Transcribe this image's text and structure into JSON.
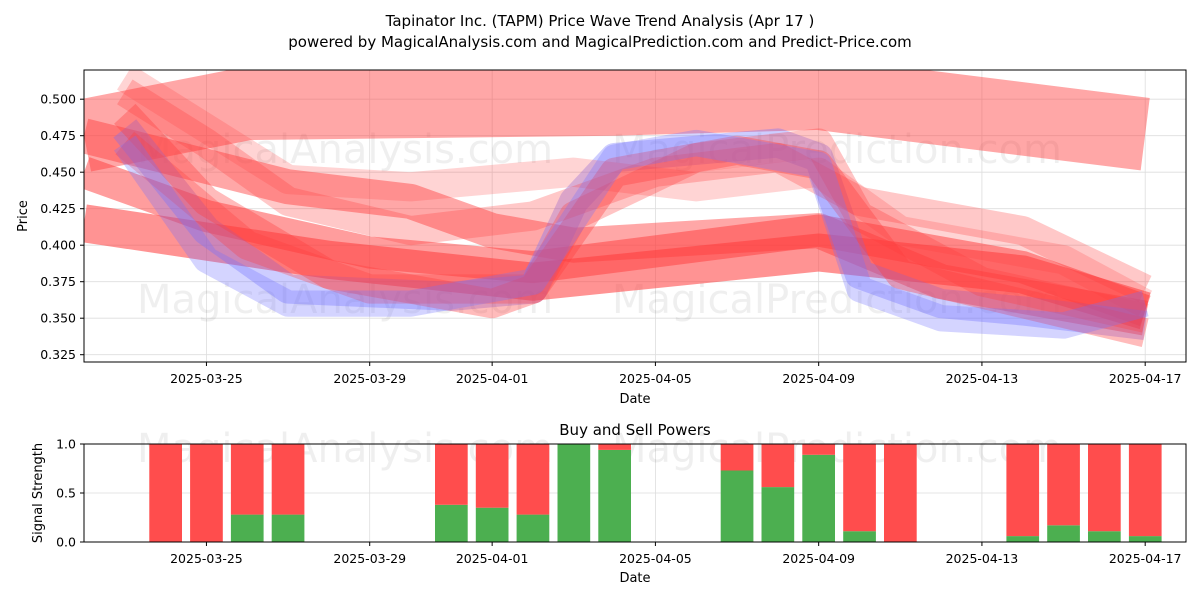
{
  "colors": {
    "buy": "#4caf50",
    "sell": "#ff4d4d",
    "wave_red": "#ff3b3b",
    "wave_blue": "#6f6fff"
  },
  "watermarks": [
    "MagicalAnalysis.com",
    "MagicalPrediction.com"
  ],
  "chart_data": [
    {
      "type": "line",
      "title": "Tapinator Inc. (TAPM) Price Wave Trend Analysis (Apr 17 )",
      "subtitle": "powered by MagicalAnalysis.com and MagicalPrediction.com and Predict-Price.com",
      "xlabel": "Date",
      "ylabel": "Price",
      "x_range": [
        "2025-03-22",
        "2025-04-18"
      ],
      "ylim": [
        0.32,
        0.52
      ],
      "x_ticks": [
        "2025-03-25",
        "2025-03-29",
        "2025-04-01",
        "2025-04-05",
        "2025-04-09",
        "2025-04-13",
        "2025-04-17"
      ],
      "y_ticks": [
        0.325,
        0.35,
        0.375,
        0.4,
        0.425,
        0.45,
        0.475,
        0.5
      ],
      "grid": true,
      "series": [
        {
          "color": "red",
          "width": 0.05,
          "opacity": 0.45,
          "points": [
            [
              "2025-03-22",
              0.475
            ],
            [
              "2025-03-26",
              0.497
            ],
            [
              "2025-04-04",
              0.5
            ],
            [
              "2025-04-09",
              0.504
            ],
            [
              "2025-04-17",
              0.476
            ]
          ]
        },
        {
          "color": "red",
          "width": 0.026,
          "opacity": 0.55,
          "points": [
            [
              "2025-03-22",
              0.415
            ],
            [
              "2025-03-28",
              0.39
            ],
            [
              "2025-04-02",
              0.375
            ],
            [
              "2025-04-09",
              0.395
            ],
            [
              "2025-04-14",
              0.38
            ],
            [
              "2025-04-17",
              0.355
            ]
          ]
        },
        {
          "color": "red",
          "width": 0.022,
          "opacity": 0.5,
          "points": [
            [
              "2025-03-22",
              0.45
            ],
            [
              "2025-03-25",
              0.42
            ],
            [
              "2025-03-29",
              0.395
            ],
            [
              "2025-04-02",
              0.385
            ],
            [
              "2025-04-09",
              0.41
            ],
            [
              "2025-04-14",
              0.385
            ],
            [
              "2025-04-17",
              0.355
            ]
          ]
        },
        {
          "color": "red",
          "width": 0.024,
          "opacity": 0.45,
          "points": [
            [
              "2025-03-22",
              0.475
            ],
            [
              "2025-03-27",
              0.44
            ],
            [
              "2025-03-30",
              0.43
            ],
            [
              "2025-04-01",
              0.41
            ],
            [
              "2025-04-03",
              0.4
            ],
            [
              "2025-04-09",
              0.41
            ],
            [
              "2025-04-12",
              0.375
            ],
            [
              "2025-04-17",
              0.35
            ]
          ]
        },
        {
          "color": "blue",
          "width": 0.02,
          "opacity": 0.35,
          "points": [
            [
              "2025-03-23",
              0.48
            ],
            [
              "2025-03-25",
              0.41
            ],
            [
              "2025-03-27",
              0.37
            ],
            [
              "2025-03-31",
              0.365
            ],
            [
              "2025-04-02",
              0.37
            ],
            [
              "2025-04-03",
              0.43
            ],
            [
              "2025-04-04",
              0.46
            ],
            [
              "2025-04-08",
              0.47
            ],
            [
              "2025-04-09",
              0.46
            ],
            [
              "2025-04-10",
              0.38
            ],
            [
              "2025-04-12",
              0.36
            ],
            [
              "2025-04-14",
              0.355
            ],
            [
              "2025-04-17",
              0.345
            ]
          ]
        },
        {
          "color": "red",
          "width": 0.02,
          "opacity": 0.35,
          "points": [
            [
              "2025-03-23",
              0.49
            ],
            [
              "2025-03-25",
              0.43
            ],
            [
              "2025-03-28",
              0.38
            ],
            [
              "2025-04-01",
              0.36
            ],
            [
              "2025-04-02",
              0.37
            ],
            [
              "2025-04-04",
              0.45
            ],
            [
              "2025-04-07",
              0.465
            ],
            [
              "2025-04-09",
              0.455
            ],
            [
              "2025-04-11",
              0.38
            ],
            [
              "2025-04-14",
              0.36
            ],
            [
              "2025-04-17",
              0.34
            ]
          ]
        },
        {
          "color": "red",
          "width": 0.02,
          "opacity": 0.3,
          "points": [
            [
              "2025-03-23",
              0.47
            ],
            [
              "2025-03-26",
              0.4
            ],
            [
              "2025-03-29",
              0.37
            ],
            [
              "2025-04-02",
              0.37
            ],
            [
              "2025-04-03",
              0.42
            ],
            [
              "2025-04-06",
              0.46
            ],
            [
              "2025-04-09",
              0.47
            ],
            [
              "2025-04-10",
              0.42
            ],
            [
              "2025-04-13",
              0.375
            ],
            [
              "2025-04-17",
              0.35
            ]
          ]
        },
        {
          "color": "red",
          "width": 0.02,
          "opacity": 0.28,
          "points": [
            [
              "2025-03-23",
              0.505
            ],
            [
              "2025-03-25",
              0.47
            ],
            [
              "2025-03-27",
              0.43
            ],
            [
              "2025-03-30",
              0.41
            ],
            [
              "2025-04-02",
              0.42
            ],
            [
              "2025-04-05",
              0.45
            ],
            [
              "2025-04-08",
              0.46
            ],
            [
              "2025-04-10",
              0.43
            ],
            [
              "2025-04-14",
              0.41
            ],
            [
              "2025-04-17",
              0.37
            ]
          ]
        },
        {
          "color": "red",
          "width": 0.02,
          "opacity": 0.22,
          "points": [
            [
              "2025-03-23",
              0.515
            ],
            [
              "2025-03-25",
              0.48
            ],
            [
              "2025-03-27",
              0.445
            ],
            [
              "2025-03-30",
              0.44
            ],
            [
              "2025-04-03",
              0.45
            ],
            [
              "2025-04-06",
              0.44
            ],
            [
              "2025-04-09",
              0.45
            ],
            [
              "2025-04-11",
              0.41
            ],
            [
              "2025-04-15",
              0.39
            ],
            [
              "2025-04-17",
              0.36
            ]
          ]
        },
        {
          "color": "blue",
          "width": 0.018,
          "opacity": 0.3,
          "points": [
            [
              "2025-03-23",
              0.47
            ],
            [
              "2025-03-25",
              0.39
            ],
            [
              "2025-03-27",
              0.36
            ],
            [
              "2025-03-30",
              0.36
            ],
            [
              "2025-04-02",
              0.375
            ],
            [
              "2025-04-04",
              0.46
            ],
            [
              "2025-04-06",
              0.47
            ],
            [
              "2025-04-09",
              0.455
            ],
            [
              "2025-04-10",
              0.37
            ],
            [
              "2025-04-12",
              0.35
            ],
            [
              "2025-04-15",
              0.345
            ],
            [
              "2025-04-17",
              0.36
            ]
          ]
        }
      ]
    },
    {
      "type": "bar",
      "title": "Buy and Sell Powers",
      "xlabel": "Date",
      "ylabel": "Signal Strength",
      "x_range": [
        "2025-03-22",
        "2025-04-18"
      ],
      "ylim": [
        0,
        1
      ],
      "x_ticks": [
        "2025-03-25",
        "2025-03-29",
        "2025-04-01",
        "2025-04-05",
        "2025-04-09",
        "2025-04-13",
        "2025-04-17"
      ],
      "y_ticks": [
        "0.0",
        "0.5",
        "1.0"
      ],
      "grid": true,
      "series": [
        {
          "name": "Buy",
          "key": "buy"
        },
        {
          "name": "Sell",
          "key": "sell"
        }
      ],
      "bars": [
        {
          "date": "2025-03-24",
          "buy": 0.0,
          "sell": 1.0
        },
        {
          "date": "2025-03-25",
          "buy": 0.0,
          "sell": 1.0
        },
        {
          "date": "2025-03-26",
          "buy": 0.28,
          "sell": 0.72
        },
        {
          "date": "2025-03-27",
          "buy": 0.28,
          "sell": 0.72
        },
        {
          "date": "2025-03-31",
          "buy": 0.38,
          "sell": 0.62
        },
        {
          "date": "2025-04-01",
          "buy": 0.35,
          "sell": 0.65
        },
        {
          "date": "2025-04-02",
          "buy": 0.28,
          "sell": 0.72
        },
        {
          "date": "2025-04-03",
          "buy": 1.0,
          "sell": 0.0
        },
        {
          "date": "2025-04-04",
          "buy": 0.94,
          "sell": 0.06
        },
        {
          "date": "2025-04-07",
          "buy": 0.73,
          "sell": 0.27
        },
        {
          "date": "2025-04-08",
          "buy": 0.56,
          "sell": 0.44
        },
        {
          "date": "2025-04-09",
          "buy": 0.89,
          "sell": 0.11
        },
        {
          "date": "2025-04-10",
          "buy": 0.11,
          "sell": 0.89
        },
        {
          "date": "2025-04-11",
          "buy": 0.0,
          "sell": 1.0
        },
        {
          "date": "2025-04-14",
          "buy": 0.06,
          "sell": 0.94
        },
        {
          "date": "2025-04-15",
          "buy": 0.17,
          "sell": 0.83
        },
        {
          "date": "2025-04-16",
          "buy": 0.11,
          "sell": 0.89
        },
        {
          "date": "2025-04-17",
          "buy": 0.06,
          "sell": 0.94
        }
      ]
    }
  ]
}
